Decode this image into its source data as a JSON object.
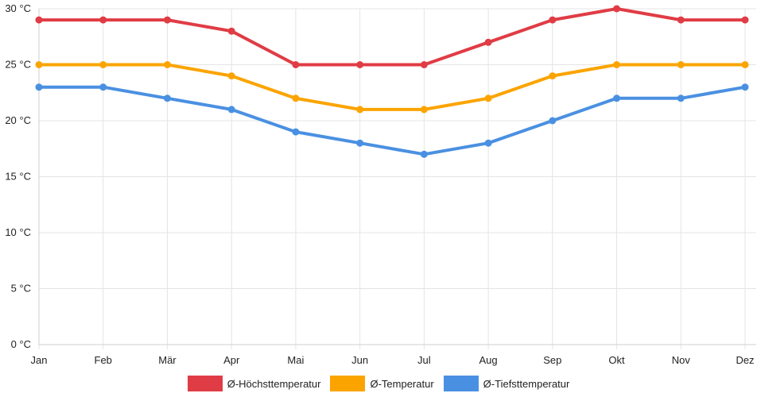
{
  "chart_data": {
    "type": "line",
    "categories": [
      "Jan",
      "Feb",
      "Mär",
      "Apr",
      "Mai",
      "Jun",
      "Jul",
      "Aug",
      "Sep",
      "Okt",
      "Nov",
      "Dez"
    ],
    "series": [
      {
        "name": "Ø-Höchsttemperatur",
        "color": "#e03c45",
        "values": [
          29,
          29,
          29,
          28,
          25,
          25,
          25,
          27,
          29,
          30,
          29,
          29
        ]
      },
      {
        "name": "Ø-Temperatur",
        "color": "#fba400",
        "values": [
          25,
          25,
          25,
          24,
          22,
          21,
          21,
          22,
          24,
          25,
          25,
          25
        ]
      },
      {
        "name": "Ø-Tiefsttemperatur",
        "color": "#4a90e2",
        "values": [
          23,
          23,
          22,
          21,
          19,
          18,
          17,
          18,
          20,
          22,
          22,
          23
        ]
      }
    ],
    "y_ticks": [
      "0 °C",
      "5 °C",
      "10 °C",
      "15 °C",
      "20 °C",
      "25 °C",
      "30 °C"
    ],
    "ylim": [
      0,
      30
    ],
    "grid": true,
    "legend_position": "bottom"
  }
}
